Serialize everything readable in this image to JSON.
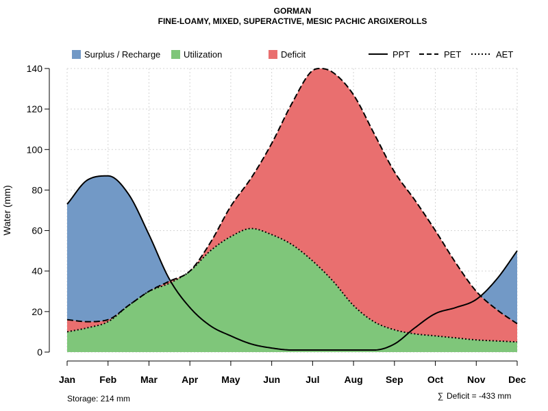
{
  "chart_data": {
    "type": "area",
    "title": "GORMAN",
    "subtitle": "FINE-LOAMY, MIXED, SUPERACTIVE, MESIC PACHIC ARGIXEROLLS",
    "xlabel": "",
    "ylabel": "Water (mm)",
    "ylim": [
      0,
      140
    ],
    "yticks": [
      0,
      20,
      40,
      60,
      80,
      100,
      120,
      140
    ],
    "grid": true,
    "categories": [
      "Jan",
      "Feb",
      "Mar",
      "Apr",
      "May",
      "Jun",
      "Jul",
      "Aug",
      "Sep",
      "Oct",
      "Nov",
      "Dec"
    ],
    "curves": {
      "PPT": {
        "x": [
          1,
          1.5,
          2,
          2.5,
          3,
          3.5,
          4,
          4.5,
          5,
          5.5,
          6,
          6.5,
          7,
          7.5,
          8,
          8.5,
          9,
          9.5,
          10,
          10.5,
          11,
          11.5,
          12
        ],
        "y": [
          73,
          85,
          87,
          78,
          58,
          36,
          22,
          13,
          8,
          4,
          2,
          1,
          1,
          1,
          1,
          1,
          4,
          12,
          19,
          22,
          26,
          36,
          50
        ]
      },
      "PET": {
        "x": [
          1,
          1.5,
          2,
          2.5,
          3,
          3.5,
          4,
          4.5,
          5,
          5.5,
          6,
          6.5,
          7,
          7.2,
          7.5,
          8,
          8.5,
          9,
          9.5,
          10,
          10.5,
          11,
          11.5,
          12
        ],
        "y": [
          16,
          15,
          16,
          23,
          30,
          35,
          40,
          54,
          72,
          86,
          103,
          123,
          139,
          140,
          138,
          127,
          108,
          89,
          75,
          60,
          44,
          30,
          21,
          14
        ]
      },
      "AET": {
        "x": [
          1,
          1.5,
          2,
          2.5,
          3,
          3.5,
          4,
          4.5,
          5,
          5.5,
          6,
          6.5,
          7,
          7.5,
          8,
          8.5,
          9,
          9.5,
          10,
          10.5,
          11,
          11.5,
          12
        ],
        "y": [
          10,
          12,
          15,
          23,
          30,
          34,
          40,
          50,
          57,
          61,
          58,
          53,
          45,
          35,
          23,
          15,
          11,
          9,
          8,
          7,
          6,
          5.5,
          5
        ]
      }
    },
    "legend": {
      "placement": "top",
      "areas": [
        {
          "label": "Surplus / Recharge",
          "color": "#7299c6"
        },
        {
          "label": "Utilization",
          "color": "#7fc67a"
        },
        {
          "label": "Deficit",
          "color": "#e96f6f"
        }
      ],
      "lines": [
        {
          "label": "PPT",
          "dash": "solid"
        },
        {
          "label": "PET",
          "dash": "dashed"
        },
        {
          "label": "AET",
          "dash": "dotted"
        }
      ]
    },
    "annotations": {
      "storage": "Storage: 214 mm",
      "deficit_symbol": "∑",
      "deficit": "Deficit = -433 mm"
    }
  },
  "colors": {
    "surplus": "#7299c6",
    "utilization": "#7fc67a",
    "deficit": "#e96f6f",
    "grid": "#d3d3d3"
  }
}
